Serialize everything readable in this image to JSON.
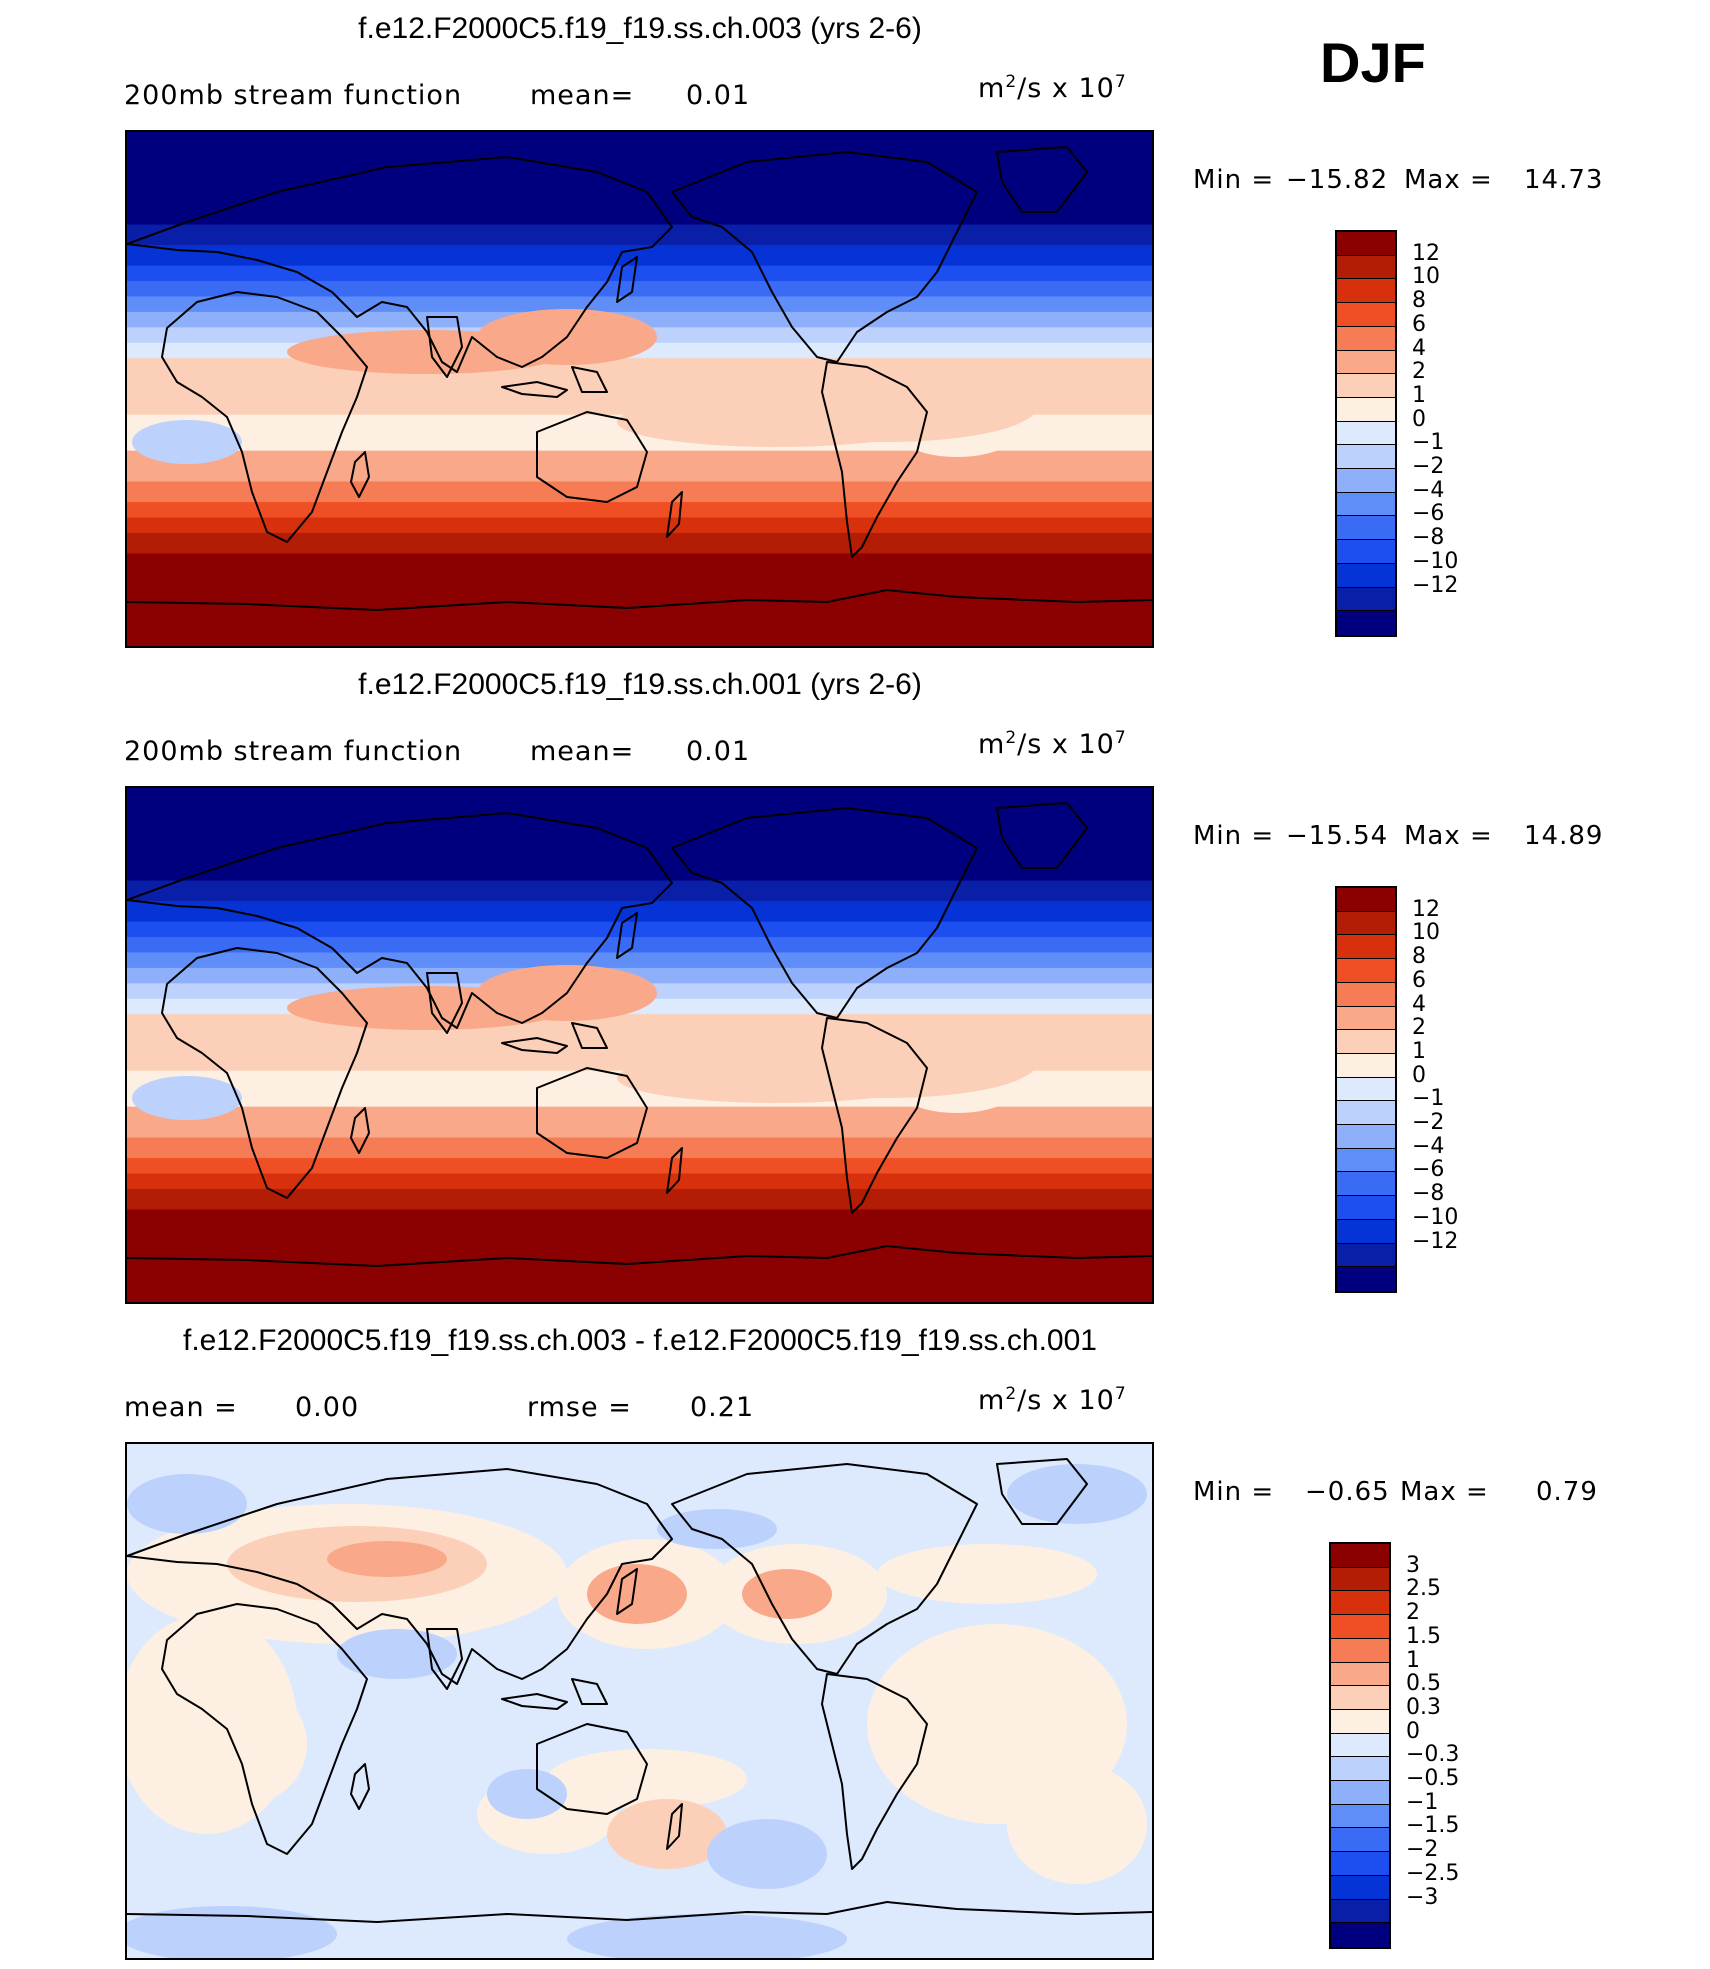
{
  "season": "DJF",
  "colors": {
    "stream": [
      "#00007f",
      "#0a1fa8",
      "#0533d6",
      "#1d4ff0",
      "#3a6bf4",
      "#5f8ef8",
      "#8eb0fb",
      "#bcd1fc",
      "#dde9fc",
      "#fdf0e3",
      "#fcd0b8",
      "#f9a98a",
      "#f57c55",
      "#f04f25",
      "#d7300c",
      "#b31c05",
      "#8b0000"
    ],
    "diff": [
      "#00007f",
      "#0a1fa8",
      "#0533d6",
      "#1d4ff0",
      "#3a6bf4",
      "#5f8ef8",
      "#8eb0fb",
      "#bcd1fc",
      "#dde9fc",
      "#fdf0e3",
      "#fcd0b8",
      "#f9a98a",
      "#f57c55",
      "#f04f25",
      "#d7300c",
      "#b31c05",
      "#8b0000"
    ]
  },
  "panels": [
    {
      "title": "f.e12.F2000C5.f19_f19.ss.ch.003 (yrs 2-6)",
      "left_text": "200mb  stream  function",
      "mean_label": "mean=",
      "mean_value": "0.01",
      "units_base": "m",
      "units_sup": "2",
      "units_mid": "/s  x  10",
      "units_exp": "7",
      "min_label": "Min  =",
      "min_value": "−15.82",
      "max_label": "Max  =",
      "max_value": "14.73",
      "levels": [
        "12",
        "10",
        "8",
        "6",
        "4",
        "2",
        "1",
        "0",
        "−1",
        "−2",
        "−4",
        "−6",
        "−8",
        "−10",
        "−12"
      ]
    },
    {
      "title": "f.e12.F2000C5.f19_f19.ss.ch.001 (yrs 2-6)",
      "left_text": "200mb  stream  function",
      "mean_label": "mean=",
      "mean_value": "0.01",
      "units_base": "m",
      "units_sup": "2",
      "units_mid": "/s  x  10",
      "units_exp": "7",
      "min_label": "Min  =",
      "min_value": "−15.54",
      "max_label": "Max  =",
      "max_value": "14.89",
      "levels": [
        "12",
        "10",
        "8",
        "6",
        "4",
        "2",
        "1",
        "0",
        "−1",
        "−2",
        "−4",
        "−6",
        "−8",
        "−10",
        "−12"
      ]
    },
    {
      "title": "f.e12.F2000C5.f19_f19.ss.ch.003 - f.e12.F2000C5.f19_f19.ss.ch.001",
      "left_text": "mean  =",
      "mean_value": "0.00",
      "rmse_label": "rmse  =",
      "rmse_value": "0.21",
      "units_base": "m",
      "units_sup": "2",
      "units_mid": "/s  x  10",
      "units_exp": "7",
      "min_label": "Min  =",
      "min_value": "−0.65",
      "max_label": "Max  =",
      "max_value": "0.79",
      "levels": [
        "3",
        "2.5",
        "2",
        "1.5",
        "1",
        "0.5",
        "0.3",
        "0",
        "−0.3",
        "−0.5",
        "−1",
        "−1.5",
        "−2",
        "−2.5",
        "−3"
      ]
    }
  ]
}
